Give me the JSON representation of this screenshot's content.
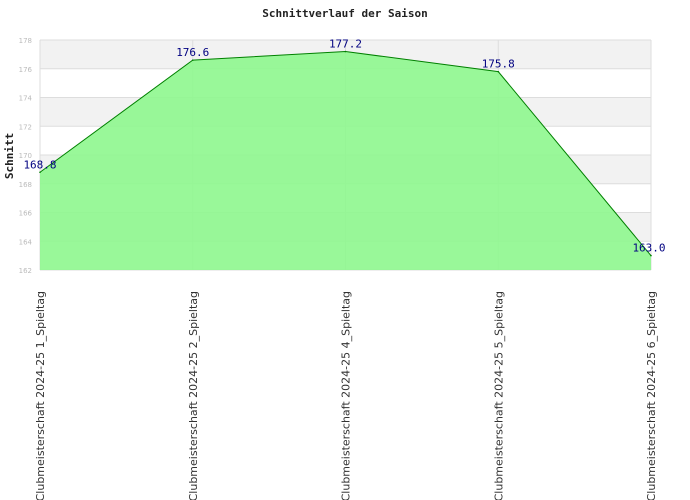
{
  "chart_data": {
    "type": "area",
    "title": "Schnittverlauf der Saison",
    "xlabel": "",
    "ylabel": "Schnitt",
    "ylim": [
      162,
      178
    ],
    "yticks": [
      162,
      164,
      166,
      168,
      170,
      172,
      174,
      176,
      178
    ],
    "categories": [
      "Clubmeisterschaft 2024-25  1_Spieltag",
      "Clubmeisterschaft 2024-25  2_Spieltag",
      "Clubmeisterschaft 2024-25  4_Spieltag",
      "Clubmeisterschaft 2024-25  5_Spieltag",
      "Clubmeisterschaft 2024-25  6_Spieltag"
    ],
    "values": [
      168.8,
      176.6,
      177.2,
      175.8,
      163.0
    ],
    "data_labels": [
      "168.8",
      "176.6",
      "177.2",
      "175.8",
      "163.0"
    ],
    "grid": true,
    "colors": {
      "fill": "#8ef78e",
      "line": "#008000",
      "label": "#000080",
      "band": "#f2f2f2",
      "grid": "#dddddd"
    }
  }
}
